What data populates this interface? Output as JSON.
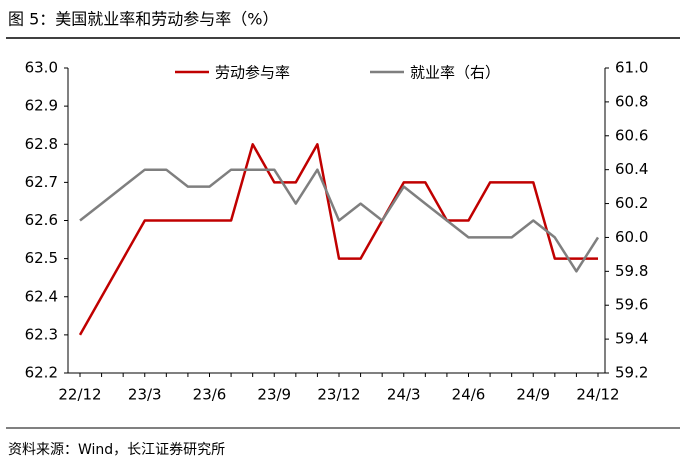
{
  "chart_data": {
    "type": "line",
    "title": "图 5：美国就业率和劳动参与率（%）",
    "source": "资料来源：Wind，长江证券研究所",
    "categories": [
      "22/12",
      null,
      null,
      "23/3",
      null,
      null,
      "23/6",
      null,
      null,
      "23/9",
      null,
      null,
      "23/12",
      null,
      null,
      "24/3",
      null,
      null,
      "24/6",
      null,
      null,
      "24/9",
      null,
      null,
      "24/12"
    ],
    "series": [
      {
        "name": "劳动参与率",
        "color": "#c00000",
        "values": [
          62.3,
          62.4,
          62.5,
          62.6,
          62.6,
          62.6,
          62.6,
          62.6,
          62.8,
          62.7,
          62.7,
          62.8,
          62.5,
          62.5,
          62.6,
          62.7,
          62.7,
          62.6,
          62.6,
          62.7,
          62.7,
          62.7,
          62.5,
          62.5,
          62.5
        ]
      },
      {
        "name": "就业率（右）",
        "color": "#7f7f7f",
        "axis": "y2",
        "values": [
          60.1,
          60.2,
          60.3,
          60.4,
          60.4,
          60.3,
          60.3,
          60.4,
          60.4,
          60.4,
          60.2,
          60.4,
          60.1,
          60.2,
          60.1,
          60.3,
          60.2,
          60.1,
          60.0,
          60.0,
          60.0,
          60.1,
          60.0,
          59.8,
          60.0
        ]
      }
    ],
    "ylim": [
      62.2,
      63.0
    ],
    "yticks": [
      62.2,
      62.3,
      62.4,
      62.5,
      62.6,
      62.7,
      62.8,
      62.9,
      {
        "value": 63,
        "label": "63.0"
      }
    ],
    "y2lim": [
      59.2,
      61.0
    ],
    "y2ticks": [
      59.2,
      59.4,
      59.6,
      59.8,
      {
        "value": 60,
        "label": "60.0"
      },
      60.2,
      60.4,
      60.6,
      60.8,
      {
        "value": 61,
        "label": "61.0"
      }
    ],
    "legend": "top"
  }
}
